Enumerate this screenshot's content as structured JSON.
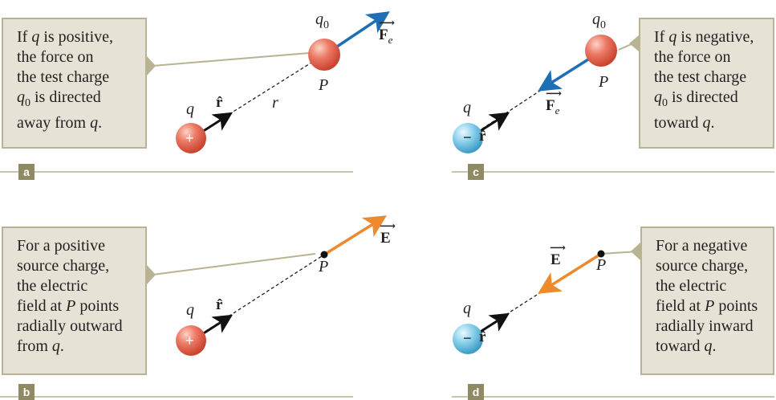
{
  "panel_a": {
    "tag": "a",
    "callout_lines": [
      "If ",
      "q",
      " is positive,",
      "the force on",
      "the test charge",
      "q",
      "0",
      " is directed",
      "away from ",
      "q",
      "."
    ],
    "source_label": "q",
    "source_sign": "+",
    "test_label": "q",
    "test_sub": "0",
    "point_label": "P",
    "r_label": "r",
    "rhat": "r̂",
    "force_label": "F",
    "force_sub": "e"
  },
  "panel_b": {
    "tag": "b",
    "source_label": "q",
    "source_sign": "+",
    "point_label": "P",
    "rhat": "r̂",
    "field_label": "E"
  },
  "panel_c": {
    "tag": "c",
    "source_label": "q",
    "source_sign": "−",
    "test_label": "q",
    "test_sub": "0",
    "point_label": "P",
    "rhat": "r̂",
    "force_label": "F",
    "force_sub": "e"
  },
  "panel_d": {
    "tag": "d",
    "source_label": "q",
    "source_sign": "−",
    "point_label": "P",
    "rhat": "r̂",
    "field_label": "E"
  },
  "colors": {
    "positive_charge": "#e8705c",
    "negative_charge": "#7fcbe8",
    "force_arrow": "#1f6fb5",
    "field_arrow": "#ee8a2e",
    "callout_bg": "#e6e3d6",
    "callout_border": "#b8b393",
    "tag_bg": "#8f8a64"
  }
}
